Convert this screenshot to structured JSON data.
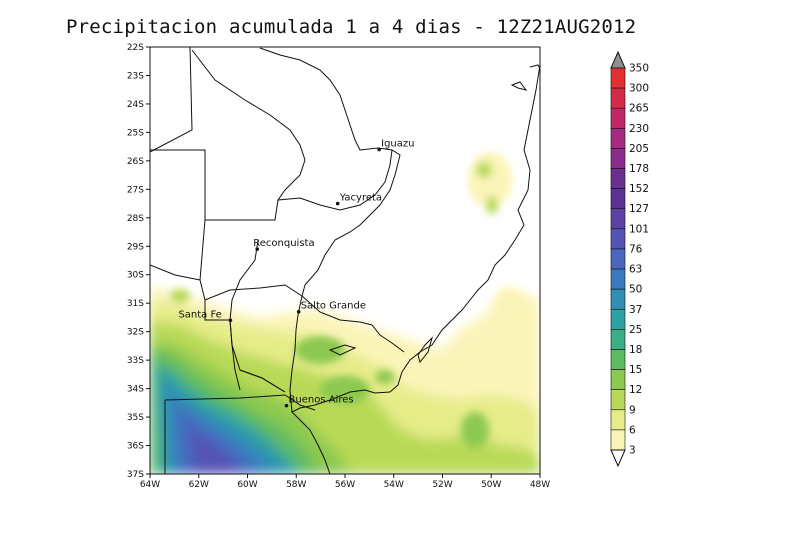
{
  "title": "Precipitacion acumulada 1 a 4 dias - 12Z21AUG2012",
  "map": {
    "lat_labels": [
      "22S",
      "23S",
      "24S",
      "25S",
      "26S",
      "27S",
      "28S",
      "29S",
      "30S",
      "31S",
      "32S",
      "33S",
      "34S",
      "35S",
      "36S",
      "37S"
    ],
    "lon_labels": [
      "64W",
      "62W",
      "60W",
      "58W",
      "56W",
      "54W",
      "52W",
      "50W",
      "48W"
    ],
    "cities": [
      {
        "name": "Iguazu",
        "lon": -54.6,
        "lat": -25.6
      },
      {
        "name": "Yacyreta",
        "lon": -56.3,
        "lat": -27.5
      },
      {
        "name": "Reconquista",
        "lon": -59.6,
        "lat": -29.1
      },
      {
        "name": "Santa Fe",
        "lon": -60.7,
        "lat": -31.6
      },
      {
        "name": "Salto Grande",
        "lon": -57.9,
        "lat": -31.3
      },
      {
        "name": "Buenos Aires",
        "lon": -58.4,
        "lat": -34.6
      }
    ]
  },
  "colorbar": {
    "levels": [
      "3",
      "6",
      "9",
      "12",
      "15",
      "18",
      "25",
      "37",
      "50",
      "63",
      "76",
      "101",
      "127",
      "152",
      "178",
      "205",
      "230",
      "265",
      "300",
      "350"
    ],
    "colors": [
      "#fbf4b8",
      "#e6ec88",
      "#b8d957",
      "#8cc94f",
      "#5fbb63",
      "#3aae86",
      "#2ea2a3",
      "#2f8fb5",
      "#3b7ac0",
      "#4a66be",
      "#5553b6",
      "#5a42a6",
      "#5a3394",
      "#6a2f8f",
      "#8a2d8a",
      "#a72a80",
      "#c22868",
      "#d52a48",
      "#e23030"
    ],
    "top_color": "#909090"
  }
}
